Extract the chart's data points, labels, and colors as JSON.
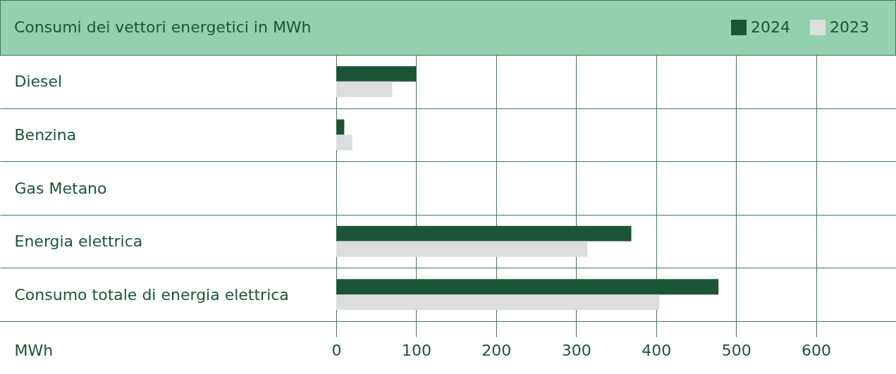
{
  "chart_data": {
    "type": "bar",
    "orientation": "horizontal",
    "title": "Consumi dei vettori energetici in MWh",
    "xlabel": "MWh",
    "categories": [
      "Diesel",
      "Benzina",
      "Gas Metano",
      "Energia elettrica",
      "Consumo totale di energia elettrica"
    ],
    "series": [
      {
        "name": "2024",
        "color": "#1c5536",
        "values": [
          100,
          10,
          0,
          369,
          478
        ]
      },
      {
        "name": "2023",
        "color": "#dcdddf",
        "values": [
          70,
          20,
          0,
          314,
          404
        ]
      }
    ],
    "xlim": [
      0,
      700
    ],
    "xticks": [
      0,
      100,
      200,
      300,
      400,
      500,
      600
    ],
    "grid": true,
    "legend": "top right"
  }
}
